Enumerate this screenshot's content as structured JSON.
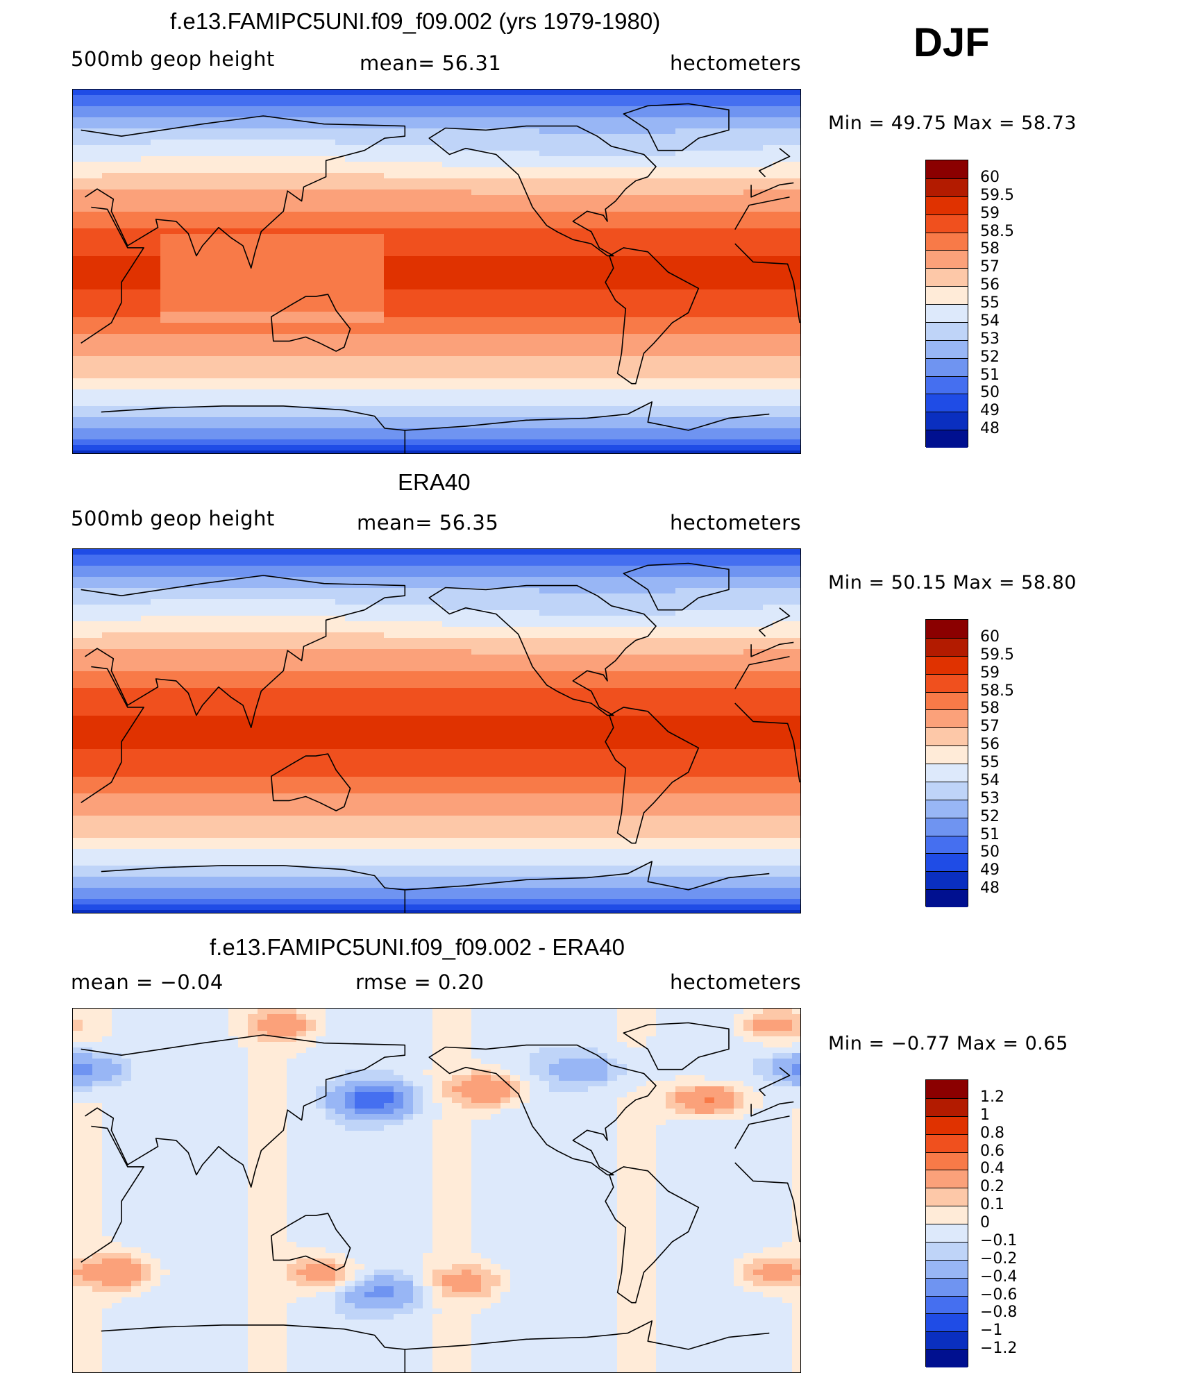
{
  "season": "DJF",
  "panels": [
    {
      "title": "f.e13.FAMIPC5UNI.f09_f09.002 (yrs 1979-1980)",
      "left": "500mb  geop  height",
      "center": "mean=   56.31",
      "right": "hectometers",
      "min_max": "Min  =    49.75  Max  =    58.73",
      "style": "abs",
      "lighter_west": true
    },
    {
      "title": "ERA40",
      "left": "500mb  geop  height",
      "center": "mean=   56.35",
      "right": "hectometers",
      "min_max": "Min  =    50.15  Max  =    58.80",
      "style": "abs",
      "lighter_west": false
    },
    {
      "title": "f.e13.FAMIPC5UNI.f09_f09.002 - ERA40",
      "left": "mean  =    −0.04",
      "center": "rmse  =     0.20",
      "right": "hectometers",
      "min_max": "Min  =    −0.77  Max  =     0.65",
      "style": "diff"
    }
  ],
  "colorbars": [
    {
      "labels": [
        "60",
        "59.5",
        "59",
        "58.5",
        "58",
        "57",
        "56",
        "55",
        "54",
        "53",
        "52",
        "51",
        "50",
        "49",
        "48"
      ],
      "colors": [
        "#8b0000",
        "#b31b00",
        "#e03200",
        "#f0501e",
        "#f87a48",
        "#fba17a",
        "#fdc8a8",
        "#ffebd8",
        "#dde9fb",
        "#bfd4f8",
        "#98b6f5",
        "#6f94f1",
        "#456ff0",
        "#1f4ce6",
        "#0a2fc0",
        "#001090"
      ]
    },
    {
      "labels": [
        "60",
        "59.5",
        "59",
        "58.5",
        "58",
        "57",
        "56",
        "55",
        "54",
        "53",
        "52",
        "51",
        "50",
        "49",
        "48"
      ],
      "colors": [
        "#8b0000",
        "#b31b00",
        "#e03200",
        "#f0501e",
        "#f87a48",
        "#fba17a",
        "#fdc8a8",
        "#ffebd8",
        "#dde9fb",
        "#bfd4f8",
        "#98b6f5",
        "#6f94f1",
        "#456ff0",
        "#1f4ce6",
        "#0a2fc0",
        "#001090"
      ]
    },
    {
      "labels": [
        "1.2",
        "1",
        "0.8",
        "0.6",
        "0.4",
        "0.2",
        "0.1",
        "0",
        "−0.1",
        "−0.2",
        "−0.4",
        "−0.6",
        "−0.8",
        "−1",
        "−1.2"
      ],
      "colors": [
        "#8b0000",
        "#b31b00",
        "#e03200",
        "#f0501e",
        "#f87a48",
        "#fba17a",
        "#fdc8a8",
        "#ffebd8",
        "#dde9fb",
        "#bfd4f8",
        "#98b6f5",
        "#6f94f1",
        "#456ff0",
        "#1f4ce6",
        "#0a2fc0",
        "#001090"
      ]
    }
  ]
}
